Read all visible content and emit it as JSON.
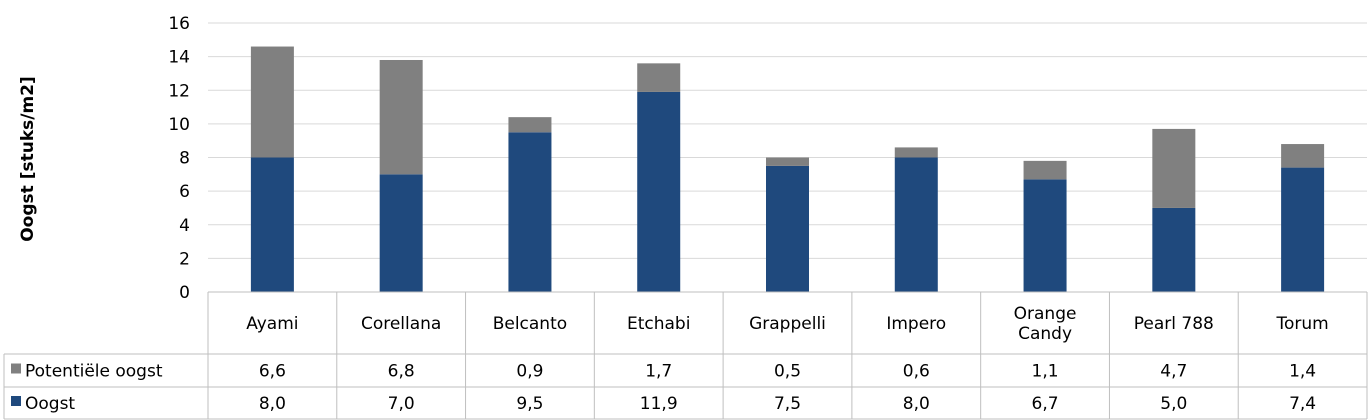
{
  "chart_data": {
    "type": "bar",
    "stacked": true,
    "categories": [
      "Ayami",
      "Corellana",
      "Belcanto",
      "Etchabi",
      "Grappelli",
      "Impero",
      "Orange Candy",
      "Pearl 788",
      "Torum"
    ],
    "series": [
      {
        "name": "Oogst",
        "color": "#1F497D",
        "values": [
          8.0,
          7.0,
          9.5,
          11.9,
          7.5,
          8.0,
          6.7,
          5.0,
          7.4
        ],
        "labels": [
          "8,0",
          "7,0",
          "9,5",
          "11,9",
          "7,5",
          "8,0",
          "6,7",
          "5,0",
          "7,4"
        ]
      },
      {
        "name": "Potentiële oogst",
        "color": "#808080",
        "values": [
          6.6,
          6.8,
          0.9,
          1.7,
          0.5,
          0.6,
          1.1,
          4.7,
          1.4
        ],
        "labels": [
          "6,6",
          "6,8",
          "0,9",
          "1,7",
          "0,5",
          "0,6",
          "1,1",
          "4,7",
          "1,4"
        ]
      }
    ],
    "title": "",
    "xlabel": "",
    "ylabel": "Oogst [stuks/m2]",
    "ylim": [
      0,
      16
    ],
    "yticks": [
      0,
      2,
      4,
      6,
      8,
      10,
      12,
      14,
      16
    ],
    "grid": true,
    "data_table": true
  }
}
